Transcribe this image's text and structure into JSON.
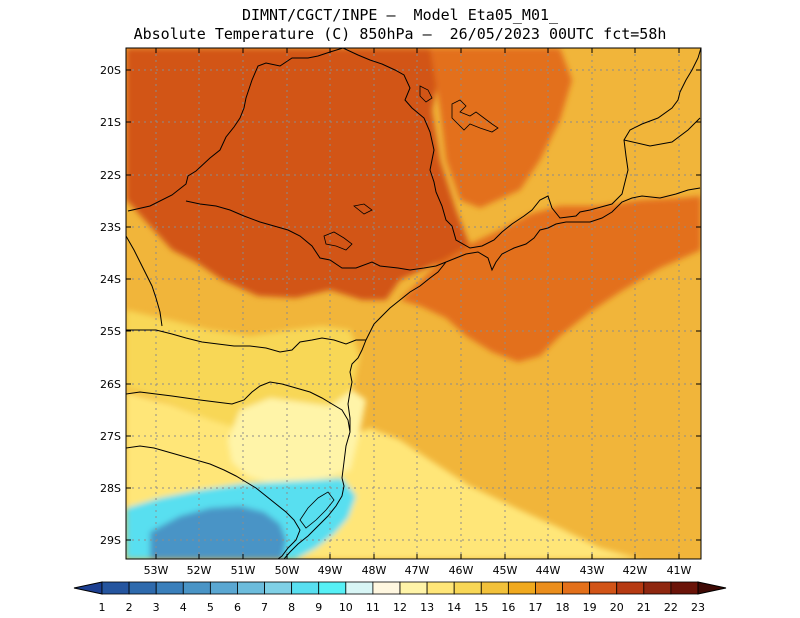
{
  "title_line1": "DIMNT/CGCT/INPE –  Model Eta05_M01_",
  "title_line2": "Absolute Temperature (C) 850hPa –  26/05/2023 00UTC fct=58h",
  "lat_labels": [
    "20S",
    "21S",
    "22S",
    "23S",
    "24S",
    "25S",
    "26S",
    "27S",
    "28S",
    "29S"
  ],
  "lon_labels": [
    "53W",
    "52W",
    "51W",
    "50W",
    "49W",
    "48W",
    "47W",
    "46W",
    "45W",
    "44W",
    "43W",
    "42W",
    "41W"
  ],
  "colorbar": {
    "labels": [
      "1",
      "2",
      "3",
      "4",
      "5",
      "6",
      "7",
      "8",
      "9",
      "10",
      "11",
      "12",
      "13",
      "14",
      "15",
      "16",
      "17",
      "18",
      "19",
      "20",
      "21",
      "22",
      "23"
    ],
    "colors": [
      "#1c3f91",
      "#25559f",
      "#2e6aad",
      "#3a7fbb",
      "#4994c6",
      "#5aa7d2",
      "#6cbcdc",
      "#7fd0e6",
      "#58dff0",
      "#56f0f6",
      "#d8f6f6",
      "#fff7e0",
      "#fff4a8",
      "#ffe678",
      "#f8d756",
      "#f2c13a",
      "#f0a91e",
      "#eb8e1c",
      "#e3701a",
      "#d25417",
      "#b63a12",
      "#8f2710",
      "#6b1409",
      "#3f0a05"
    ]
  },
  "map": {
    "lat_range": [
      -29.4,
      -19.9
    ],
    "lon_range": [
      -53.5,
      -40.8
    ],
    "background_color": "#f1b53a",
    "regions": [
      {
        "name": "heat-core-northwest",
        "color": "#b63a12"
      },
      {
        "name": "warm-interior-sao-paulo",
        "color": "#d25417"
      },
      {
        "name": "warm-south-minas",
        "color": "#e3701a"
      },
      {
        "name": "warm-offshore-east",
        "color": "#e3701a"
      },
      {
        "name": "cool-tongue-parana",
        "color": "#f8d756"
      },
      {
        "name": "cooler-south-coast",
        "color": "#ffe678"
      },
      {
        "name": "pale-santa-catarina",
        "color": "#fff4a8"
      },
      {
        "name": "cold-pool-rio-grande-do-sul",
        "color": "#58dff0"
      },
      {
        "name": "cold-core-south",
        "color": "#4994c6"
      }
    ]
  }
}
